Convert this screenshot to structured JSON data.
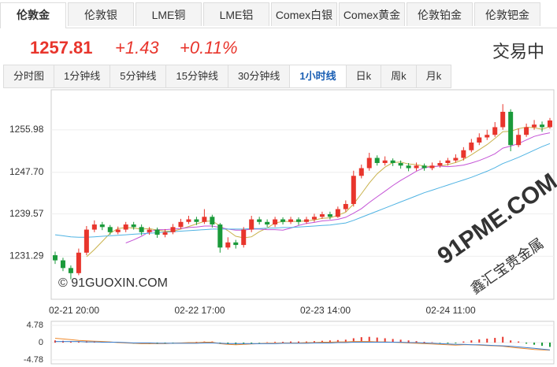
{
  "tabs": [
    "伦敦金",
    "伦敦银",
    "LME铜",
    "LME铝",
    "Comex白银",
    "Comex黄金",
    "伦敦铂金",
    "伦敦钯金"
  ],
  "quote": {
    "price": "1257.81",
    "change": "+1.43",
    "change_pct": "+0.11%",
    "status": "交易中"
  },
  "periods": [
    "分时图",
    "1分钟线",
    "5分钟线",
    "15分钟线",
    "30分钟线",
    "1小时线",
    "日k",
    "周k",
    "月k"
  ],
  "watermarks": [
    "© 91GUOXIN.COM",
    "91PME.COM",
    "鑫汇宝贵金属"
  ],
  "chart_data": [
    {
      "type": "candlestick",
      "up_color": "#e8352c",
      "down_color": "#1a9a3a",
      "grid": true,
      "ylim": [
        1222.9,
        1263.8
      ],
      "yticks": [
        1231.29,
        1239.57,
        {
          "value": 1247.7,
          "label": "1247.70"
        },
        1255.98
      ],
      "categories": [
        "02-21 20:00",
        null,
        null,
        null,
        null,
        null,
        null,
        null,
        null,
        null,
        null,
        null,
        null,
        null,
        null,
        null,
        "02-22 17:00",
        null,
        null,
        null,
        null,
        null,
        null,
        null,
        null,
        null,
        null,
        null,
        null,
        null,
        null,
        null,
        "02-23 14:00",
        null,
        null,
        null,
        null,
        null,
        null,
        null,
        null,
        null,
        null,
        null,
        null,
        null,
        null,
        null,
        "02-24 11:00",
        null,
        null,
        null,
        null,
        null,
        null,
        null,
        null,
        null,
        null,
        null,
        null,
        null,
        null,
        null
      ],
      "open": [
        1231.5,
        1230.5,
        1229.0,
        1228.0,
        1232.0,
        1236.5,
        1237.5,
        1237.0,
        1236.0,
        1236.5,
        1237.5,
        1237.0,
        1236.0,
        1236.5,
        1235.5,
        1236.0,
        1237.0,
        1238.0,
        1238.5,
        1238.0,
        1239.0,
        1237.5,
        1233.0,
        1234.0,
        1233.5,
        1236.5,
        1238.5,
        1238.0,
        1237.5,
        1238.5,
        1238.0,
        1238.5,
        1238.0,
        1238.5,
        1239.0,
        1239.5,
        1239.0,
        1240.5,
        1241.5,
        1247.0,
        1248.5,
        1250.5,
        1249.5,
        1250.0,
        1249.5,
        1249.0,
        1248.5,
        1249.0,
        1248.5,
        1249.0,
        1249.5,
        1250.0,
        1250.5,
        1252.0,
        1253.5,
        1254.5,
        1255.0,
        1256.5,
        1259.5,
        1253.0,
        1255.0,
        1256.5,
        1257.0,
        1256.5
      ],
      "high": [
        1232.2,
        1231.0,
        1229.5,
        1232.8,
        1237.2,
        1238.3,
        1238.0,
        1237.4,
        1237.1,
        1238.0,
        1238.0,
        1237.5,
        1237.0,
        1236.9,
        1236.6,
        1237.6,
        1238.6,
        1239.2,
        1239.0,
        1240.5,
        1239.4,
        1237.8,
        1235.0,
        1234.5,
        1237.0,
        1239.2,
        1239.0,
        1238.5,
        1239.0,
        1238.9,
        1239.0,
        1238.9,
        1239.0,
        1239.6,
        1240.0,
        1240.0,
        1241.0,
        1242.2,
        1248.0,
        1249.2,
        1251.5,
        1251.0,
        1250.8,
        1250.4,
        1250.0,
        1249.5,
        1249.6,
        1249.4,
        1249.6,
        1250.0,
        1250.5,
        1251.2,
        1252.6,
        1254.2,
        1255.3,
        1256.0,
        1257.5,
        1261.0,
        1260.0,
        1256.2,
        1257.2,
        1257.9,
        1257.6,
        1258.3
      ],
      "low": [
        1229.8,
        1228.4,
        1226.8,
        1227.6,
        1231.5,
        1236.0,
        1236.4,
        1235.5,
        1235.6,
        1236.0,
        1236.5,
        1235.4,
        1235.5,
        1234.9,
        1235.0,
        1235.6,
        1236.6,
        1237.6,
        1237.4,
        1237.6,
        1236.9,
        1232.0,
        1232.6,
        1232.8,
        1233.0,
        1236.0,
        1237.5,
        1237.0,
        1237.0,
        1237.5,
        1237.6,
        1237.4,
        1237.6,
        1238.0,
        1238.6,
        1238.5,
        1238.8,
        1240.0,
        1241.0,
        1246.5,
        1248.0,
        1249.0,
        1249.0,
        1248.9,
        1248.4,
        1247.9,
        1248.0,
        1248.0,
        1248.1,
        1248.6,
        1249.0,
        1249.6,
        1250.0,
        1251.6,
        1253.0,
        1254.0,
        1254.6,
        1256.0,
        1251.8,
        1252.6,
        1254.6,
        1256.0,
        1255.6,
        1256.2
      ],
      "close": [
        1230.5,
        1229.0,
        1228.0,
        1232.0,
        1236.5,
        1237.5,
        1237.0,
        1236.0,
        1236.5,
        1237.5,
        1237.0,
        1236.0,
        1236.5,
        1235.5,
        1236.0,
        1237.0,
        1238.0,
        1238.5,
        1238.0,
        1239.0,
        1237.5,
        1233.0,
        1234.0,
        1233.5,
        1236.5,
        1238.5,
        1238.0,
        1237.5,
        1238.5,
        1238.0,
        1238.5,
        1238.0,
        1238.5,
        1239.0,
        1239.5,
        1239.0,
        1240.5,
        1241.5,
        1247.0,
        1248.5,
        1250.5,
        1249.5,
        1250.0,
        1249.5,
        1249.0,
        1248.5,
        1249.0,
        1248.5,
        1249.0,
        1249.5,
        1250.0,
        1250.5,
        1252.0,
        1253.5,
        1254.5,
        1255.0,
        1256.5,
        1259.5,
        1253.0,
        1255.0,
        1256.5,
        1257.0,
        1256.5,
        1257.81
      ],
      "lines": [
        {
          "color": "#c9b24c",
          "values": [
            null,
            null,
            null,
            null,
            1231.2,
            1232.6,
            1234.2,
            1235.8,
            1236.7,
            1236.9,
            1236.8,
            1236.6,
            1236.7,
            1236.4,
            1236.2,
            1236.2,
            1236.6,
            1237.1,
            1237.6,
            1238.1,
            1238.2,
            1237.2,
            1236.3,
            1235.2,
            1234.9,
            1235.1,
            1236.1,
            1236.8,
            1237.8,
            1238.1,
            1238.1,
            1238.1,
            1238.2,
            1238.4,
            1238.7,
            1238.8,
            1239.3,
            1239.9,
            1241.5,
            1243.5,
            1245.6,
            1247.4,
            1248.7,
            1249.6,
            1249.7,
            1249.3,
            1249.2,
            1248.9,
            1248.8,
            1248.9,
            1249.2,
            1249.6,
            1250.2,
            1251.1,
            1252.1,
            1253.1,
            1254.3,
            1255.6,
            1255.7,
            1256.2,
            1256.5,
            1256.4,
            1256.1,
            1256.6
          ]
        },
        {
          "color": "#c453d6",
          "values": [
            null,
            null,
            null,
            null,
            null,
            null,
            null,
            null,
            null,
            1233.9,
            1234.5,
            1235.2,
            1236.1,
            1236.5,
            1236.5,
            1236.6,
            1236.7,
            1236.9,
            1237.0,
            1237.2,
            1237.2,
            1236.9,
            1236.6,
            1236.4,
            1236.4,
            1236.6,
            1236.6,
            1236.5,
            1236.5,
            1236.4,
            1236.8,
            1237.3,
            1237.7,
            1237.9,
            1238.2,
            1238.3,
            1238.5,
            1238.9,
            1239.7,
            1240.6,
            1241.8,
            1242.9,
            1244.0,
            1245.1,
            1246.1,
            1247.0,
            1247.9,
            1248.6,
            1248.8,
            1248.9,
            1248.8,
            1248.9,
            1249.1,
            1249.5,
            1250.0,
            1250.6,
            1251.3,
            1252.4,
            1252.8,
            1253.3,
            1254.0,
            1254.7,
            1255.1,
            1255.4
          ]
        },
        {
          "color": "#4fb3e3",
          "values": [
            1235.5,
            1235.3,
            1235.1,
            1235.0,
            1235.0,
            1235.1,
            1235.2,
            1235.3,
            1235.4,
            1235.5,
            1235.6,
            1235.7,
            1235.8,
            1235.9,
            1236.0,
            1236.1,
            1236.2,
            1236.3,
            1236.4,
            1236.5,
            1236.6,
            1236.6,
            1236.6,
            1236.6,
            1236.6,
            1236.7,
            1236.7,
            1236.8,
            1236.8,
            1236.9,
            1236.9,
            1237.0,
            1237.1,
            1237.2,
            1237.3,
            1237.4,
            1237.6,
            1237.8,
            1238.3,
            1238.9,
            1239.5,
            1240.1,
            1240.7,
            1241.3,
            1241.9,
            1242.5,
            1243.1,
            1243.7,
            1244.2,
            1244.7,
            1245.2,
            1245.7,
            1246.2,
            1246.7,
            1247.3,
            1247.9,
            1248.6,
            1249.4,
            1250.0,
            1250.6,
            1251.3,
            1252.0,
            1252.7,
            1253.3
          ]
        }
      ]
    },
    {
      "type": "macd",
      "up_color": "#e8352c",
      "down_color": "#1a9a3a",
      "ylim": [
        -5.9,
        5.9
      ],
      "yticks": [
        -4.78,
        0,
        4.78
      ],
      "values": [
        0.6,
        0.5,
        0.3,
        0.2,
        0.4,
        0.3,
        0.2,
        0.1,
        -0.1,
        -0.2,
        -0.3,
        -0.3,
        -0.4,
        -0.4,
        -0.3,
        -0.2,
        -0.1,
        0.1,
        0.2,
        0.3,
        0.3,
        -0.2,
        -0.5,
        -0.6,
        -0.4,
        -0.2,
        -0.1,
        0.1,
        0.2,
        0.2,
        0.3,
        0.3,
        0.3,
        0.4,
        0.5,
        0.6,
        0.7,
        0.8,
        1.2,
        1.5,
        1.6,
        1.4,
        1.2,
        1.0,
        0.8,
        0.6,
        0.4,
        0.2,
        0.1,
        -0.1,
        -0.2,
        -0.2,
        0.3,
        0.6,
        0.9,
        1.1,
        1.3,
        1.6,
        0.6,
        0.3,
        -0.3,
        -0.6,
        -0.9,
        -1.2
      ],
      "lines": [
        {
          "color": "#f08a2c",
          "values": [
            1.2,
            1.0,
            0.8,
            0.6,
            0.5,
            0.4,
            0.3,
            0.2,
            0.0,
            -0.1,
            -0.2,
            -0.3,
            -0.3,
            -0.3,
            -0.3,
            -0.2,
            -0.1,
            0.0,
            0.0,
            0.1,
            0.1,
            -0.3,
            -0.5,
            -0.6,
            -0.5,
            -0.4,
            -0.3,
            -0.2,
            -0.2,
            -0.1,
            -0.1,
            -0.1,
            0.0,
            0.0,
            0.1,
            0.1,
            0.2,
            0.2,
            0.3,
            0.3,
            0.3,
            0.2,
            0.2,
            0.1,
            0.0,
            -0.1,
            -0.2,
            -0.3,
            -0.4,
            -0.5,
            -0.6,
            -0.7,
            -0.6,
            -0.6,
            -0.7,
            -0.8,
            -0.9,
            -1.0,
            -1.3,
            -1.5,
            -1.7,
            -1.9,
            -2.0,
            -2.1
          ]
        },
        {
          "color": "#3b7fd0",
          "values": [
            0.3,
            0.3,
            0.3,
            0.3,
            0.2,
            0.2,
            0.1,
            0.1,
            0.1,
            0.0,
            -0.1,
            -0.1,
            -0.1,
            -0.2,
            -0.2,
            -0.2,
            -0.2,
            -0.2,
            -0.2,
            -0.1,
            -0.1,
            -0.2,
            -0.3,
            -0.3,
            -0.3,
            -0.3,
            -0.3,
            -0.3,
            -0.3,
            -0.2,
            -0.2,
            -0.2,
            -0.2,
            -0.1,
            -0.1,
            -0.1,
            0.0,
            0.0,
            0.1,
            0.1,
            0.1,
            0.1,
            0.1,
            0.1,
            0.1,
            0.0,
            0.0,
            -0.1,
            -0.2,
            -0.3,
            -0.4,
            -0.5,
            -0.5,
            -0.6,
            -0.6,
            -0.7,
            -0.8,
            -0.9,
            -1.0,
            -1.2,
            -1.4,
            -1.6,
            -1.8,
            -2.0
          ]
        }
      ]
    }
  ]
}
